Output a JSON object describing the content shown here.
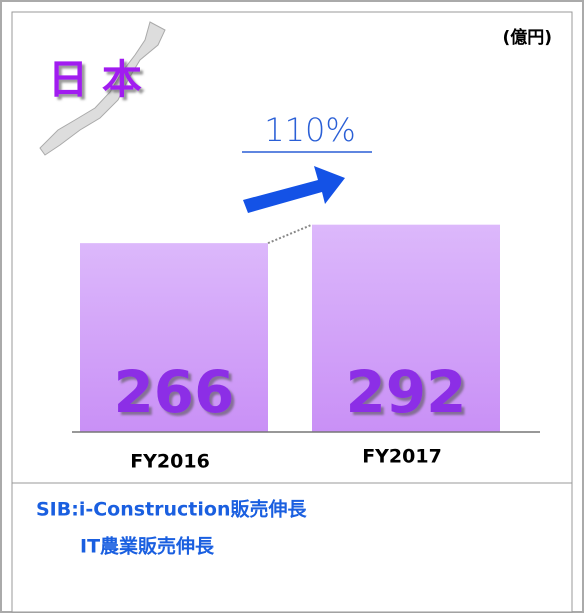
{
  "chart_data": {
    "type": "bar",
    "title": "日 本",
    "unit": "(億円)",
    "annotation": "110%",
    "categories": [
      "FY2016",
      "FY2017"
    ],
    "values": [
      266,
      292
    ],
    "color": "#cfa3f7",
    "notes": [
      "SIB:i-Construction販売伸長",
      "IT農業販売伸長"
    ]
  }
}
